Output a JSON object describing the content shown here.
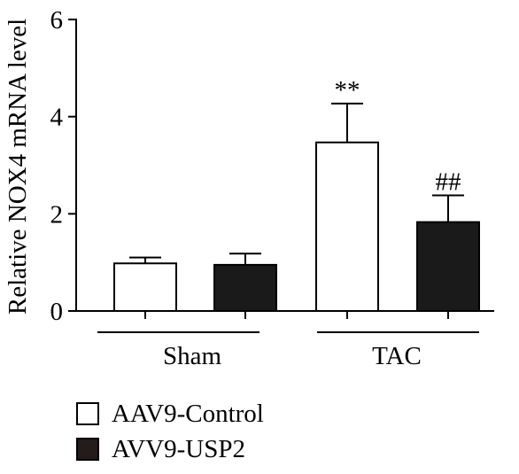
{
  "chart_data": {
    "type": "bar",
    "ylabel": "Relative NOX4 mRNA level",
    "ylim": [
      0,
      6
    ],
    "yticks": [
      0,
      2,
      4,
      6
    ],
    "groups": [
      "Sham",
      "TAC"
    ],
    "series": [
      {
        "name": "AAV9-Control",
        "color": "#ffffff",
        "values": [
          0.98,
          3.47
        ],
        "errors": [
          0.12,
          0.8
        ],
        "annotations": [
          "",
          "**"
        ]
      },
      {
        "name": "AVV9-USP2",
        "color": "#1a1a1a",
        "values": [
          0.95,
          1.83
        ],
        "errors": [
          0.23,
          0.55
        ],
        "annotations": [
          "",
          "##"
        ]
      }
    ],
    "grid": false,
    "legend_position": "bottom-left"
  },
  "legend": [
    {
      "label": "AAV9-Control",
      "color": "#ffffff"
    },
    {
      "label": "AVV9-USP2",
      "color": "#231c1a"
    }
  ]
}
